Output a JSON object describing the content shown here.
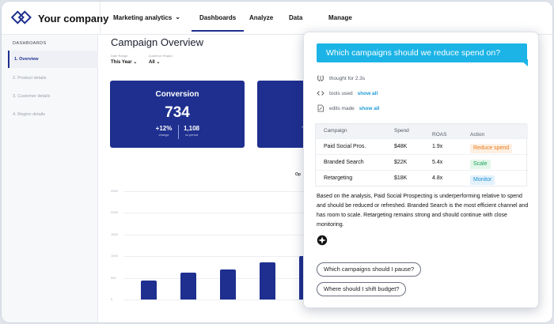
{
  "app": {
    "company": "Your company",
    "brand_color": "#1e2f8f"
  },
  "topnav": {
    "items": [
      {
        "label": "Marketing analytics",
        "dropdown": true
      },
      {
        "label": "Dashboards",
        "active": true
      },
      {
        "label": "Analyze"
      },
      {
        "label": "Data"
      },
      {
        "label": "Manage"
      }
    ]
  },
  "sidebar": {
    "heading": "DASHBOARDS",
    "items": [
      {
        "label": "1. Overview",
        "active": true
      },
      {
        "label": "2. Product details"
      },
      {
        "label": "3. Customer details"
      },
      {
        "label": "4. Region details"
      }
    ]
  },
  "main": {
    "title": "Campaign Overview",
    "filters": [
      {
        "label": "Date Range",
        "value": "This Year"
      },
      {
        "label": "Audience Region",
        "value": "All"
      }
    ],
    "cards": [
      {
        "title": "Conversion",
        "value": "734",
        "stats": [
          {
            "value": "+12%",
            "caption": "change"
          },
          {
            "value": "1,108",
            "caption": "vs period"
          }
        ]
      }
    ],
    "chart_subtitle": "Op",
    "chart": {
      "y_ticks": [
        "2500",
        "2000",
        "1500",
        "1000",
        "500",
        "0"
      ],
      "bar_values": [
        430,
        620,
        700,
        860,
        1000
      ],
      "y_max": 2500
    }
  },
  "panel": {
    "question": "Which campaigns should we reduce spend on?",
    "meta": [
      {
        "icon": "brain-icon",
        "text": "thought for 2.3s",
        "link": ""
      },
      {
        "icon": "code-icon",
        "text": "tools used",
        "link": "show all"
      },
      {
        "icon": "document-edit-icon",
        "text": "edits made",
        "link": "show all"
      }
    ],
    "table": {
      "headers": [
        "Campaign",
        "Spend",
        "ROAS",
        "Action"
      ],
      "rows": [
        {
          "campaign": "Paid Social Pros.",
          "spend": "$48K",
          "roas": "1.9x",
          "action": "Reduce spend",
          "action_color": "#e8781a",
          "action_bg": "#fdf0e2"
        },
        {
          "campaign": "Branded Search",
          "spend": "$22K",
          "roas": "5.4x",
          "action": "Scale",
          "action_color": "#1aa35a",
          "action_bg": "#e3f6ea"
        },
        {
          "campaign": "Retargeting",
          "spend": "$18K",
          "roas": "4.8x",
          "action": "Monitor",
          "action_color": "#1e8fd6",
          "action_bg": "#e3f1fb"
        }
      ]
    },
    "answer": "Based on the analysis, Paid Social Prospecting is underperforming relative to spend and should be reduced or refreshed. Branded Search is the most efficient channel and has room to scale. Retargeting remains strong and should continue with close monitoring.",
    "suggestions": [
      "Which campaigns should I pause?",
      "Where should I shift budget?"
    ]
  }
}
